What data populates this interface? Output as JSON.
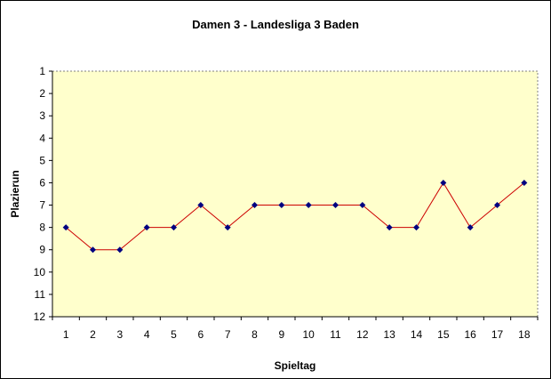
{
  "chart_data": {
    "type": "line",
    "title": "Damen 3 - Landesliga 3 Baden",
    "xlabel": "Spieltag",
    "ylabel": "Plazierun",
    "categories": [
      "1",
      "2",
      "3",
      "4",
      "5",
      "6",
      "7",
      "8",
      "9",
      "10",
      "11",
      "12",
      "13",
      "14",
      "15",
      "16",
      "17",
      "18"
    ],
    "y_ticks": [
      "1",
      "2",
      "3",
      "4",
      "5",
      "6",
      "7",
      "8",
      "9",
      "10",
      "11",
      "12"
    ],
    "ylim": [
      1,
      12
    ],
    "y_inverted": true,
    "grid": false,
    "plot_background": "#ffffcc",
    "plot_border": "dotted",
    "series": [
      {
        "values": [
          8,
          9,
          9,
          8,
          8,
          7,
          8,
          7,
          7,
          7,
          7,
          7,
          8,
          8,
          6,
          8,
          7,
          6
        ],
        "line_color": "#cc0000",
        "marker_color": "#000080",
        "marker": "diamond"
      }
    ]
  }
}
